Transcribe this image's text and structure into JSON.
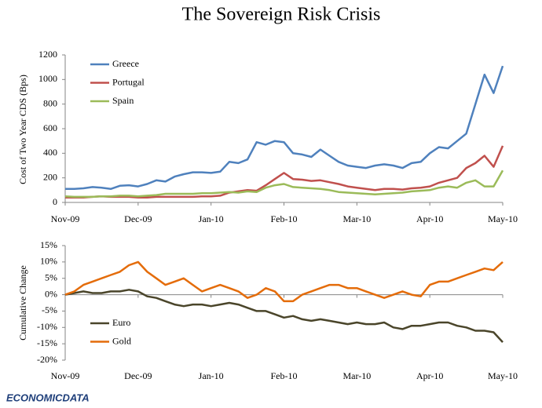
{
  "logo": "ECONOMICDATA",
  "chart_data": [
    {
      "type": "line",
      "title": "The Sovereign Risk Crisis",
      "ylabel": "Cost of Two Year CDS (Bps)",
      "categories": [
        "Nov-09",
        null,
        null,
        null,
        null,
        null,
        null,
        null,
        "Dec-09",
        null,
        null,
        null,
        null,
        null,
        null,
        null,
        "Jan-10",
        null,
        null,
        null,
        null,
        null,
        null,
        null,
        "Feb-10",
        null,
        null,
        null,
        null,
        null,
        null,
        null,
        "Mar-10",
        null,
        null,
        null,
        null,
        null,
        null,
        null,
        "Apr-10",
        null,
        null,
        null,
        null,
        null,
        null,
        null,
        "May-10"
      ],
      "ylim": [
        0,
        1200
      ],
      "yticks": [
        0,
        200,
        400,
        600,
        800,
        1000,
        1200
      ],
      "legend": "upper left",
      "series": [
        {
          "name": "Greece",
          "color": "#4f81bd",
          "values": [
            110,
            110,
            115,
            125,
            120,
            110,
            135,
            140,
            130,
            150,
            180,
            170,
            210,
            230,
            245,
            245,
            240,
            250,
            330,
            320,
            350,
            490,
            470,
            500,
            490,
            400,
            390,
            370,
            430,
            380,
            330,
            300,
            290,
            280,
            300,
            310,
            300,
            280,
            320,
            330,
            400,
            450,
            440,
            500,
            560,
            800,
            1040,
            890,
            1110
          ]
        },
        {
          "name": "Portugal",
          "color": "#c0504d",
          "values": [
            40,
            40,
            40,
            45,
            50,
            45,
            45,
            45,
            40,
            40,
            45,
            45,
            45,
            45,
            45,
            50,
            50,
            55,
            80,
            90,
            100,
            95,
            140,
            190,
            240,
            190,
            185,
            175,
            180,
            165,
            150,
            130,
            120,
            110,
            100,
            110,
            110,
            105,
            115,
            120,
            130,
            160,
            180,
            200,
            280,
            320,
            380,
            290,
            460
          ]
        },
        {
          "name": "Spain",
          "color": "#9bbb59",
          "values": [
            50,
            45,
            45,
            45,
            50,
            50,
            55,
            55,
            50,
            55,
            60,
            70,
            70,
            70,
            70,
            75,
            75,
            80,
            85,
            80,
            90,
            85,
            120,
            140,
            150,
            125,
            120,
            115,
            110,
            100,
            85,
            80,
            75,
            70,
            65,
            70,
            75,
            80,
            90,
            95,
            100,
            120,
            130,
            120,
            160,
            180,
            130,
            130,
            260
          ]
        }
      ]
    },
    {
      "type": "line",
      "ylabel": "Cumulative Change",
      "categories": [
        "Nov-09",
        null,
        null,
        null,
        null,
        null,
        null,
        null,
        "Dec-09",
        null,
        null,
        null,
        null,
        null,
        null,
        null,
        "Jan-10",
        null,
        null,
        null,
        null,
        null,
        null,
        null,
        "Feb-10",
        null,
        null,
        null,
        null,
        null,
        null,
        null,
        "Mar-10",
        null,
        null,
        null,
        null,
        null,
        null,
        null,
        "Apr-10",
        null,
        null,
        null,
        null,
        null,
        null,
        null,
        "May-10"
      ],
      "ylim": [
        -20,
        15
      ],
      "yticks": [
        {
          "value": -20,
          "label": "-20%"
        },
        {
          "value": -15,
          "label": "-15%"
        },
        {
          "value": -10,
          "label": "-10%"
        },
        {
          "value": -5,
          "label": "-5%"
        },
        {
          "value": 0,
          "label": "0%"
        },
        {
          "value": 5,
          "label": "5%"
        },
        {
          "value": 10,
          "label": "10%"
        },
        {
          "value": 15,
          "label": "15%"
        }
      ],
      "legend": "lower left",
      "series": [
        {
          "name": "Euro",
          "color": "#4a452a",
          "values": [
            0,
            0.5,
            1,
            0.5,
            0.5,
            1,
            1,
            1.5,
            1,
            -0.5,
            -1,
            -2,
            -3,
            -3.5,
            -3,
            -3,
            -3.5,
            -3,
            -2.5,
            -3,
            -4,
            -5,
            -5,
            -6,
            -7,
            -6.5,
            -7.5,
            -8,
            -7.5,
            -8,
            -8.5,
            -9,
            -8.5,
            -9,
            -9,
            -8.5,
            -10,
            -10.5,
            -9.5,
            -9.5,
            -9,
            -8.5,
            -8.5,
            -9.5,
            -10,
            -11,
            -11,
            -11.5,
            -14.5
          ]
        },
        {
          "name": "Gold",
          "color": "#e46c0a",
          "values": [
            0,
            1,
            3,
            4,
            5,
            6,
            7,
            9,
            10,
            7,
            5,
            3,
            4,
            5,
            3,
            1,
            2,
            3,
            2,
            1,
            -1,
            0,
            2,
            1,
            -2,
            -2,
            0,
            1,
            2,
            3,
            3,
            2,
            2,
            1,
            0,
            -1,
            0,
            1,
            0,
            -0.5,
            3,
            4,
            4,
            5,
            6,
            7,
            8,
            7.5,
            10
          ]
        }
      ]
    }
  ]
}
